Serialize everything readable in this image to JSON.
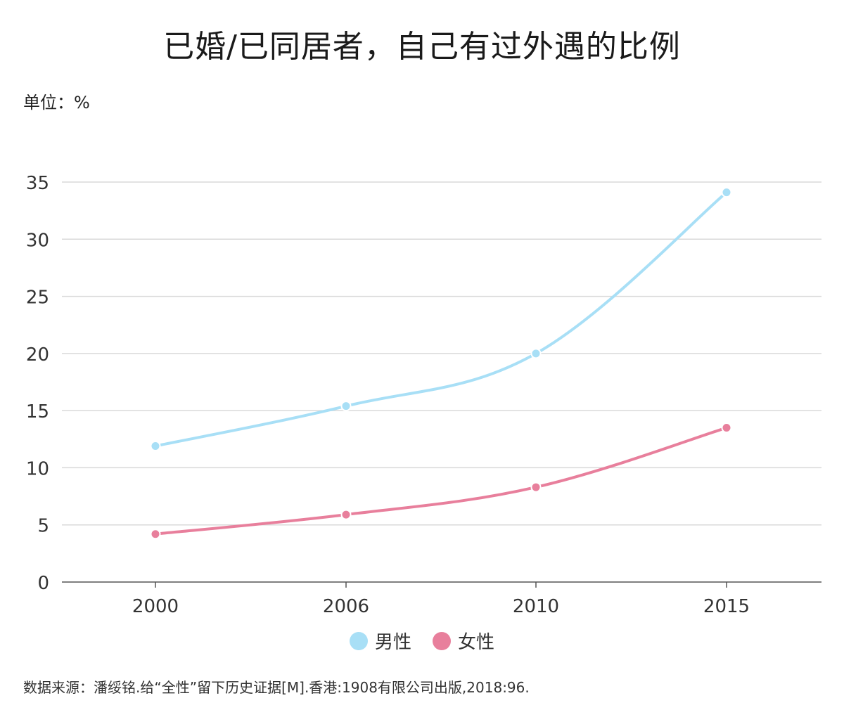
{
  "chart_data": {
    "type": "line",
    "title": "已婚/已同居者，自己有过外遇的比例",
    "unit_label": "单位：%",
    "categories": [
      "2000",
      "2006",
      "2010",
      "2015"
    ],
    "series": [
      {
        "name": "男性",
        "values": [
          11.9,
          15.4,
          20.0,
          34.1
        ],
        "color": "#a8dff6"
      },
      {
        "name": "女性",
        "values": [
          4.2,
          5.9,
          8.3,
          13.5
        ],
        "color": "#e87f9c"
      }
    ],
    "yticks": [
      "0",
      "5",
      "10",
      "15",
      "20",
      "25",
      "30",
      "35"
    ],
    "ylim": [
      0,
      35
    ],
    "grid": true,
    "legend_position": "bottom"
  },
  "source": "数据来源：潘绥铭.给“全性”留下历史证据[M].香港:1908有限公司出版,2018:96."
}
